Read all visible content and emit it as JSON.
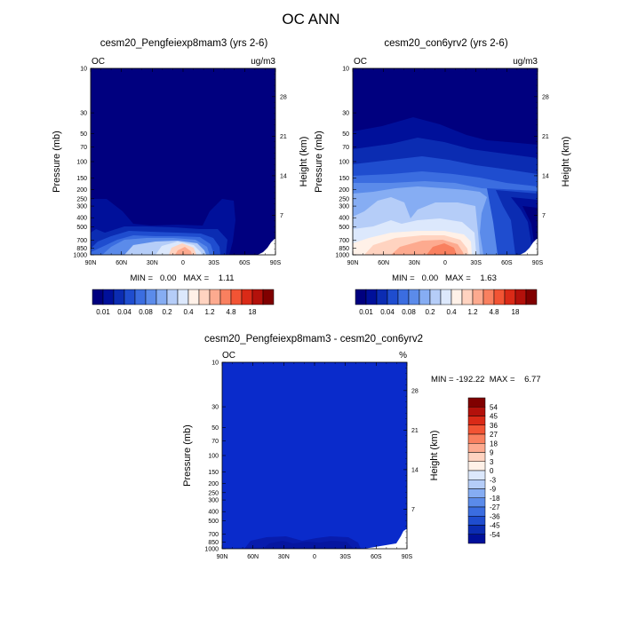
{
  "title": "OC ANN",
  "colors": {
    "levels": [
      "#00007f",
      "#00109a",
      "#0b2cb2",
      "#1f4dcf",
      "#3b6de0",
      "#5b8bea",
      "#86adf3",
      "#b5cdf8",
      "#dce8fc",
      "#fff1e8",
      "#ffd3c0",
      "#fdaa8f",
      "#f9805f",
      "#f25434",
      "#da2a17",
      "#b3110b",
      "#800000"
    ]
  },
  "chart_data": [
    {
      "type": "heatmap",
      "title": "cesm20_Pengfeiexp8mam3 (yrs 2-6)",
      "left_label": "OC",
      "units": "ug/m3",
      "ylabel": "Pressure (mb)",
      "y2label": "Height (km)",
      "x_ticks": [
        "90N",
        "60N",
        "30N",
        "0",
        "30S",
        "60S",
        "90S"
      ],
      "y_ticks": [
        "10",
        "30",
        "50",
        "70",
        "100",
        "150",
        "200",
        "250",
        "300",
        "400",
        "500",
        "700",
        "850",
        "1000"
      ],
      "y2_ticks": [
        "28",
        "21",
        "14",
        "7"
      ],
      "min_text": "MIN =   0.00   MAX =    1.11",
      "colorbar_labels": [
        "0.01",
        "0.04",
        "0.08",
        "0.2",
        "0.4",
        "1.2",
        "4.8",
        "18"
      ]
    },
    {
      "type": "heatmap",
      "title": "cesm20_con6yrv2 (yrs 2-6)",
      "left_label": "OC",
      "units": "ug/m3",
      "ylabel": "Pressure (mb)",
      "y2label": "Height (km)",
      "x_ticks": [
        "90N",
        "60N",
        "30N",
        "0",
        "30S",
        "60S",
        "90S"
      ],
      "y_ticks": [
        "10",
        "30",
        "50",
        "70",
        "100",
        "150",
        "200",
        "250",
        "300",
        "400",
        "500",
        "700",
        "850",
        "1000"
      ],
      "y2_ticks": [
        "28",
        "21",
        "14",
        "7"
      ],
      "min_text": "MIN =   0.00   MAX =    1.63",
      "colorbar_labels": [
        "0.01",
        "0.04",
        "0.08",
        "0.2",
        "0.4",
        "1.2",
        "4.8",
        "18"
      ]
    },
    {
      "type": "heatmap",
      "title": "cesm20_Pengfeiexp8mam3 - cesm20_con6yrv2",
      "left_label": "OC",
      "units": "%",
      "ylabel": "Pressure (mb)",
      "y2label": "Height (km)",
      "x_ticks": [
        "90N",
        "60N",
        "30N",
        "0",
        "30S",
        "60S",
        "90S"
      ],
      "y_ticks": [
        "10",
        "30",
        "50",
        "70",
        "100",
        "150",
        "200",
        "250",
        "300",
        "400",
        "500",
        "700",
        "850",
        "1000"
      ],
      "y2_ticks": [
        "28",
        "21",
        "14",
        "7"
      ],
      "min_text": "MIN = -192.22  MAX =    6.77",
      "colorbar_labels": [
        "54",
        "45",
        "36",
        "27",
        "18",
        "9",
        "3",
        "0",
        "-3",
        "-9",
        "-18",
        "-27",
        "-36",
        "-45",
        "-54"
      ]
    }
  ]
}
